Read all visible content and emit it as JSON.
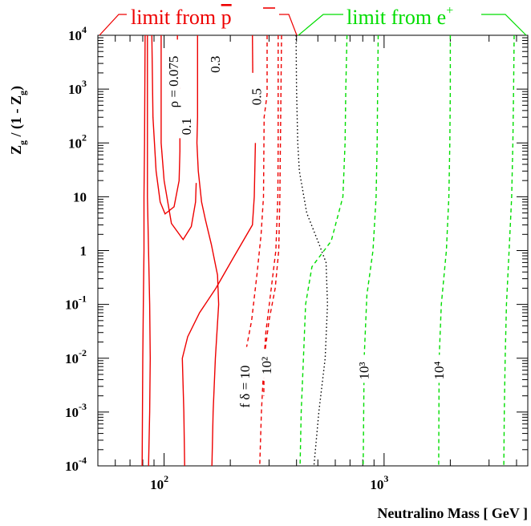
{
  "chart_data": {
    "type": "line",
    "xlabel": "Neutralino Mass [ GeV ]",
    "ylabel_main": "Z",
    "ylabel_sub": "g",
    "ylabel_mid": " / (1 - Z",
    "ylabel_end": ")",
    "xscale": "log",
    "yscale": "log",
    "xlim": [
      50,
      4500
    ],
    "ylim": [
      0.0001,
      10000
    ],
    "x_ticks": [
      {
        "value": 100,
        "base": "10",
        "exp": "2"
      },
      {
        "value": 1000,
        "base": "10",
        "exp": "3"
      }
    ],
    "y_ticks": [
      {
        "value": 10000,
        "base": "10",
        "exp": "4"
      },
      {
        "value": 1000,
        "base": "10",
        "exp": "3"
      },
      {
        "value": 100,
        "base": "10",
        "exp": "2"
      },
      {
        "value": 10,
        "base": "10",
        "exp": ""
      },
      {
        "value": 1,
        "base": "1",
        "exp": ""
      },
      {
        "value": 0.1,
        "base": "10",
        "exp": "-1"
      },
      {
        "value": 0.01,
        "base": "10",
        "exp": "-2"
      },
      {
        "value": 0.001,
        "base": "10",
        "exp": "-3"
      },
      {
        "value": 0.0001,
        "base": "10",
        "exp": "-4"
      }
    ],
    "annotations": {
      "pbar": {
        "text": "limit from ",
        "symbol": "p",
        "color": "#ee0000"
      },
      "positron": {
        "text": "limit from e",
        "sup": "+",
        "color": "#00dd00"
      }
    },
    "series": [
      {
        "group": "pbar",
        "style": "solid",
        "label": "",
        "points": [
          [
            82,
            10000
          ],
          [
            81.5,
            100
          ],
          [
            81,
            10
          ],
          [
            81,
            1
          ],
          [
            80.5,
            0.1
          ],
          [
            80,
            0.01
          ],
          [
            79.5,
            0.0001
          ]
        ]
      },
      {
        "group": "pbar",
        "style": "solid",
        "label": "",
        "points": [
          [
            84,
            10000
          ],
          [
            84,
            100
          ],
          [
            84,
            10
          ],
          [
            85,
            1
          ],
          [
            86,
            0.1
          ],
          [
            86.5,
            0.01
          ],
          [
            86,
            0.001
          ],
          [
            85,
            0.0001
          ]
        ]
      },
      {
        "group": "pbar",
        "style": "solid",
        "label": "ρ = 0.075",
        "points": [
          [
            88,
            10000
          ],
          [
            89,
            300
          ],
          [
            92,
            30
          ],
          [
            96,
            8
          ],
          [
            101,
            4.8
          ],
          [
            111,
            6.5
          ],
          [
            117,
            20
          ],
          [
            118,
            70
          ],
          [
            118,
            140
          ]
        ]
      },
      {
        "group": "pbar",
        "style": "solid",
        "label": "0.1",
        "points": [
          [
            97,
            10000
          ],
          [
            97,
            500
          ],
          [
            97,
            100
          ],
          [
            100,
            20
          ],
          [
            108,
            3.2
          ],
          [
            122,
            1.6
          ],
          [
            133,
            2.8
          ],
          [
            139,
            8
          ],
          [
            140,
            18
          ]
        ]
      },
      {
        "group": "pbar",
        "style": "solid",
        "label": "",
        "points": [
          [
            115,
            10000
          ],
          [
            115,
            2000
          ],
          [
            118,
            1000
          ]
        ]
      },
      {
        "group": "pbar",
        "style": "solid",
        "label": "0.3",
        "points": [
          [
            142,
            10000
          ],
          [
            142,
            300
          ],
          [
            141,
            100
          ],
          [
            143,
            30
          ],
          [
            148,
            8
          ],
          [
            154,
            3.8
          ],
          [
            164,
            1.3
          ],
          [
            175,
            0.35
          ],
          [
            177,
            0.1
          ],
          [
            171,
            0.01
          ],
          [
            167,
            0.001
          ],
          [
            165,
            0.0001
          ]
        ]
      },
      {
        "group": "pbar",
        "style": "solid",
        "label": "0.5",
        "points": [
          [
            252,
            10000
          ],
          [
            253,
            2000
          ]
        ]
      },
      {
        "group": "pbar",
        "style": "solid",
        "label": "",
        "points": [
          [
            260,
            100
          ],
          [
            257,
            10
          ],
          [
            252,
            3
          ],
          [
            205,
            0.7
          ],
          [
            172,
            0.2
          ],
          [
            145,
            0.07
          ],
          [
            128,
            0.025
          ],
          [
            121,
            0.01
          ],
          [
            123,
            0.001
          ],
          [
            124,
            0.0001
          ]
        ]
      },
      {
        "group": "pbar",
        "style": "dashed",
        "label": "f δ = 10",
        "points": [
          [
            294,
            10000
          ],
          [
            294,
            800
          ],
          [
            285,
            300
          ],
          [
            283,
            10
          ],
          [
            276,
            2
          ],
          [
            265,
            0.4
          ],
          [
            250,
            0.05
          ],
          [
            232,
            0.01
          ],
          [
            226,
            0.003
          ]
        ]
      },
      {
        "group": "pbar",
        "style": "dashed",
        "label": "10²",
        "points": [
          [
            330,
            10000
          ],
          [
            330,
            800
          ],
          [
            330,
            100
          ],
          [
            329,
            10
          ],
          [
            322,
            1
          ],
          [
            307,
            0.2
          ],
          [
            290,
            0.03
          ],
          [
            285,
            0.01
          ],
          [
            284,
            0.002
          ]
        ]
      },
      {
        "group": "pbar",
        "style": "dashed",
        "label": "",
        "points": [
          [
            342,
            10000
          ],
          [
            340,
            1000
          ],
          [
            338,
            100
          ],
          [
            336,
            10
          ],
          [
            332,
            1
          ],
          [
            320,
            0.2
          ],
          [
            300,
            0.05
          ],
          [
            285,
            0.01
          ],
          [
            277,
            0.001
          ],
          [
            272,
            0.0001
          ]
        ]
      },
      {
        "group": "boundary",
        "style": "dotted",
        "label": "",
        "points": [
          [
            398,
            10000
          ],
          [
            400,
            1000
          ],
          [
            405,
            100
          ],
          [
            412,
            30
          ],
          [
            445,
            5
          ],
          [
            500,
            1.5
          ],
          [
            545,
            0.6
          ],
          [
            553,
            0.1
          ],
          [
            540,
            0.01
          ],
          [
            505,
            0.001
          ],
          [
            480,
            0.0001
          ]
        ]
      },
      {
        "group": "positron",
        "style": "dashed",
        "label": "",
        "points": [
          [
            678,
            10000
          ],
          [
            670,
            1000
          ],
          [
            665,
            100
          ],
          [
            650,
            10
          ],
          [
            575,
            1.5
          ],
          [
            470,
            0.5
          ],
          [
            440,
            0.1
          ],
          [
            430,
            0.01
          ],
          [
            420,
            0.001
          ],
          [
            415,
            0.0001
          ]
        ]
      },
      {
        "group": "positron",
        "style": "dashed",
        "label": "10³",
        "points": [
          [
            940,
            10000
          ],
          [
            935,
            1000
          ],
          [
            930,
            100
          ],
          [
            920,
            10
          ],
          [
            890,
            1
          ],
          [
            835,
            0.15
          ],
          [
            812,
            0.01
          ],
          [
            805,
            0.0002
          ],
          [
            803,
            0.0001
          ]
        ]
      },
      {
        "group": "positron",
        "style": "dashed",
        "label": "10⁴",
        "points": [
          [
            2000,
            10000
          ],
          [
            2000,
            1000
          ],
          [
            1990,
            100
          ],
          [
            1970,
            10
          ],
          [
            1920,
            1
          ],
          [
            1820,
            0.1
          ],
          [
            1780,
            0.01
          ],
          [
            1775,
            0.001
          ],
          [
            1770,
            0.0001
          ]
        ]
      },
      {
        "group": "positron",
        "style": "dashed",
        "label": "",
        "points": [
          [
            3900,
            10000
          ],
          [
            3880,
            1000
          ],
          [
            3850,
            100
          ],
          [
            3800,
            10
          ],
          [
            3700,
            1
          ],
          [
            3600,
            0.1
          ],
          [
            3550,
            0.01
          ],
          [
            3520,
            0.001
          ],
          [
            3500,
            0.0001
          ]
        ]
      }
    ]
  }
}
